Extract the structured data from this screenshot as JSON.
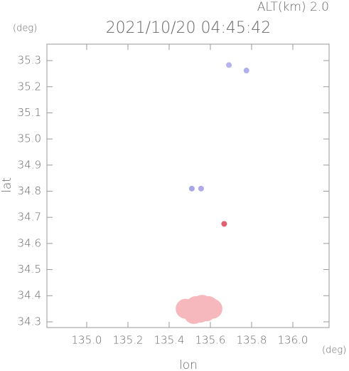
{
  "chart_data": {
    "type": "scatter",
    "title": "2021/10/20 04:45:42",
    "subtitle": "ALT(km) 2.0",
    "y_unit": "(deg)",
    "x_unit": "(deg)",
    "xlabel": "lon",
    "ylabel": "lat",
    "x": [
      135.69,
      135.775,
      135.51,
      135.555,
      135.667,
      135.5,
      135.53,
      135.56,
      135.59,
      135.52,
      135.55,
      135.58,
      135.48,
      135.61
    ],
    "values": [
      35.283,
      35.262,
      34.81,
      34.81,
      34.675,
      34.345,
      34.36,
      34.365,
      34.36,
      34.33,
      34.335,
      34.34,
      34.35,
      34.35
    ],
    "colors": [
      "#b7b3ee",
      "#b0b0ee",
      "#a8a8e8",
      "#b0a8e8",
      "#e06070",
      "#f6b8bc",
      "#f6b8bc",
      "#f6b8bc",
      "#f6b8bc",
      "#f6b8bc",
      "#f6b8bc",
      "#f6b8bc",
      "#f6b8bc",
      "#f6b8bc"
    ],
    "xlim": [
      134.807,
      136.176
    ],
    "ylim": [
      34.278,
      35.363
    ],
    "xticks": [
      {
        "value": 135,
        "label": "135.0"
      },
      135.2,
      135.4,
      135.6,
      135.8,
      {
        "value": 136,
        "label": "136.0"
      }
    ],
    "yticks": [
      34.3,
      34.4,
      34.5,
      34.6,
      34.7,
      34.8,
      34.9,
      {
        "value": 35,
        "label": "35.0"
      },
      35.1,
      35.2,
      35.3
    ]
  }
}
